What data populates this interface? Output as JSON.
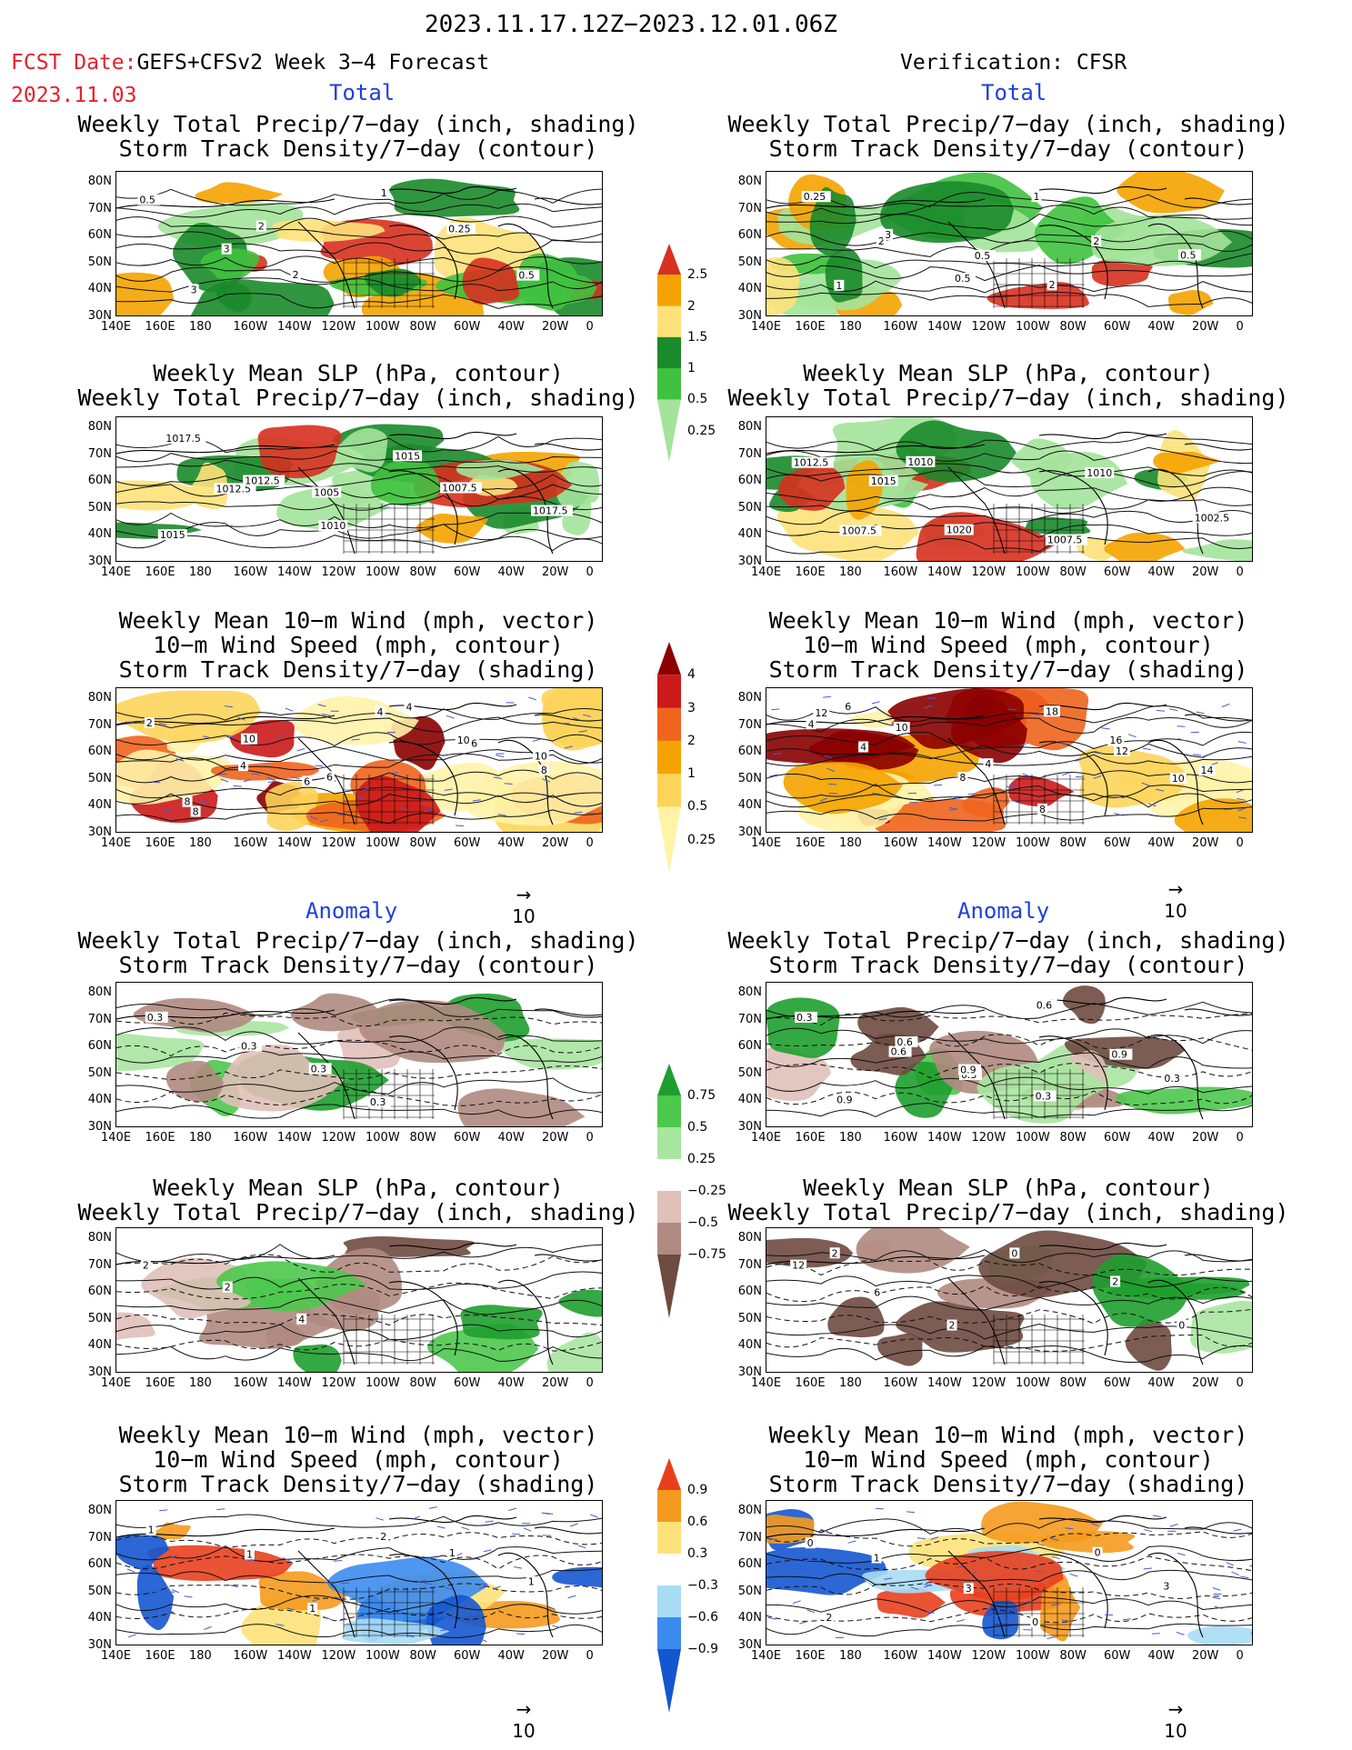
{
  "header": {
    "title": "2023.11.17.12Z−2023.12.01.06Z",
    "fcst_label": "FCST Date:",
    "fcst_model": "GEFS+CFSv2 Week 3−4 Forecast",
    "fcst_date": "2023.11.03",
    "verification": "Verification: CFSR"
  },
  "sections": {
    "total": "Total",
    "anomaly": "Anomaly"
  },
  "panel_titles": {
    "precip_storm": [
      "Weekly Total Precip/7−day (inch, shading)",
      "Storm Track Density/7−day (contour)"
    ],
    "slp_precip": [
      "Weekly Mean SLP (hPa, contour)",
      "Weekly Total Precip/7−day (inch, shading)"
    ],
    "wind_storm": [
      "Weekly Mean 10−m Wind (mph, vector)",
      "10−m Wind Speed (mph, contour)",
      "Storm Track Density/7−day (shading)"
    ]
  },
  "axes": {
    "lat_labels": [
      "80N",
      "70N",
      "60N",
      "50N",
      "40N",
      "30N"
    ],
    "lon_labels": [
      "140E",
      "160E",
      "180",
      "160W",
      "140W",
      "120W",
      "100W",
      "80W",
      "60W",
      "40W",
      "20W",
      "0"
    ]
  },
  "colorbars": {
    "total_precip": {
      "labels": [
        "2.5",
        "2",
        "1.5",
        "1",
        "0.5",
        "0.25"
      ],
      "colors": [
        "#d7301f",
        "#f5a300",
        "#fde27a",
        "#1a8a2a",
        "#3fc23f",
        "#a3e39a"
      ]
    },
    "total_storm": {
      "labels": [
        "4",
        "3",
        "2",
        "1",
        "0.5",
        "0.25"
      ],
      "colors": [
        "#8b0000",
        "#cc1a1a",
        "#f0641e",
        "#f5a300",
        "#fdd45a",
        "#fff3a8"
      ]
    },
    "anom_precip": {
      "labels": [
        "0.75",
        "0.5",
        "0.25",
        "−0.25",
        "−0.5",
        "−0.75"
      ],
      "colors": [
        "#1e9e2e",
        "#4cc84c",
        "#a8e6a0",
        "#ffffff",
        "#e0c0b8",
        "#b08a80",
        "#6e4a40"
      ]
    },
    "anom_storm": {
      "labels": [
        "0.9",
        "0.6",
        "0.3",
        "−0.3",
        "−0.6",
        "−0.9"
      ],
      "colors": [
        "#e8401e",
        "#f59a1e",
        "#fde27a",
        "#ffffff",
        "#a8dcf5",
        "#3c8cf0",
        "#1456d0"
      ]
    }
  },
  "vector_scale": "10",
  "contour_labels": {
    "fc_precip_storm": [
      "0.5",
      "3",
      "2",
      "1",
      "0.25",
      "0.5",
      "3",
      "2"
    ],
    "vf_precip_storm": [
      "0.25",
      "2",
      "0.5",
      "1",
      "2",
      "0.5",
      "1",
      "3",
      "0.5",
      "2"
    ],
    "fc_slp": [
      "1017.5",
      "1012.5",
      "1010",
      "1015",
      "1007.5",
      "1017.5",
      "1015",
      "1012.5",
      "1005"
    ],
    "vf_slp": [
      "1012.5",
      "1015",
      "1020",
      "1007.5",
      "1010",
      "1002.5",
      "1007.5",
      "1010"
    ],
    "fc_wind": [
      "2",
      "4",
      "6",
      "4",
      "10",
      "8",
      "8",
      "10",
      "6",
      "4",
      "6",
      "10",
      "8"
    ],
    "vf_wind": [
      "4",
      "4",
      "8",
      "8",
      "12",
      "10",
      "12",
      "10",
      "4",
      "18",
      "16",
      "14",
      "6"
    ],
    "fc_anom_precip": [
      "0.3",
      "0.3",
      "0.3",
      "0.3"
    ],
    "vf_anom_precip": [
      "0.3",
      "0.6",
      "0.3",
      "0.6",
      "0.9",
      "0.3",
      "0.9",
      "0.6",
      "0.9",
      "0.3"
    ],
    "fc_anom_slp": [
      "2",
      "2",
      "4"
    ],
    "vf_anom_slp": [
      "12",
      "6",
      "2",
      "0",
      "2",
      "0",
      "2"
    ],
    "fc_anom_wind": [
      "1",
      "1",
      "1",
      "2",
      "1",
      "1"
    ],
    "vf_anom_wind": [
      "0",
      "1",
      "3",
      "0",
      "0",
      "3",
      "2"
    ]
  }
}
